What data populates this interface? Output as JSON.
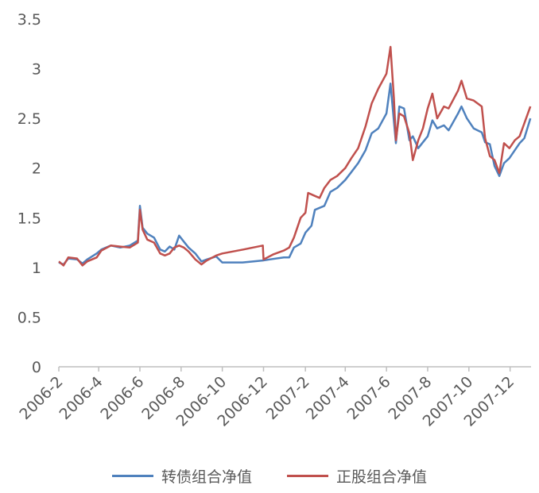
{
  "colors": {
    "series1": "#4F81BD",
    "series2": "#C0504D",
    "axis": "#bfbfbf",
    "text": "#595959"
  },
  "chart_data": {
    "type": "line",
    "title": "",
    "xlabel": "",
    "ylabel": "",
    "ylim": [
      0,
      3.5
    ],
    "yticks": [
      "0",
      "0.5",
      "1",
      "1.5",
      "2",
      "2.5",
      "3",
      "3.5"
    ],
    "xticks": [
      "2006-2",
      "2006-4",
      "2006-6",
      "2006-8",
      "2006-10",
      "2006-12",
      "2007-2",
      "2007-4",
      "2007-6",
      "2007-8",
      "2007-10",
      "2007-12"
    ],
    "xlim": [
      "2006-02",
      "2008-01"
    ],
    "grid": false,
    "legend": "bottom",
    "series": [
      {
        "name": "转债组合净值",
        "points": [
          [
            "2006-02-01",
            1.05
          ],
          [
            "2006-02-08",
            1.03
          ],
          [
            "2006-02-15",
            1.09
          ],
          [
            "2006-02-28",
            1.08
          ],
          [
            "2006-03-08",
            1.04
          ],
          [
            "2006-03-15",
            1.08
          ],
          [
            "2006-03-29",
            1.14
          ],
          [
            "2006-04-05",
            1.18
          ],
          [
            "2006-04-19",
            1.22
          ],
          [
            "2006-05-03",
            1.2
          ],
          [
            "2006-05-17",
            1.22
          ],
          [
            "2006-05-29",
            1.27
          ],
          [
            "2006-06-01",
            1.62
          ],
          [
            "2006-06-05",
            1.4
          ],
          [
            "2006-06-12",
            1.34
          ],
          [
            "2006-06-22",
            1.3
          ],
          [
            "2006-07-01",
            1.18
          ],
          [
            "2006-07-08",
            1.16
          ],
          [
            "2006-07-15",
            1.21
          ],
          [
            "2006-07-22",
            1.18
          ],
          [
            "2006-07-29",
            1.32
          ],
          [
            "2006-08-05",
            1.26
          ],
          [
            "2006-08-12",
            1.2
          ],
          [
            "2006-08-22",
            1.14
          ],
          [
            "2006-08-31",
            1.06
          ],
          [
            "2006-09-08",
            1.08
          ],
          [
            "2006-09-22",
            1.11
          ],
          [
            "2006-10-01",
            1.05
          ],
          [
            "2006-10-31",
            1.05
          ],
          [
            "2006-11-30",
            1.07
          ],
          [
            "2006-12-10",
            1.08
          ],
          [
            "2006-12-31",
            1.1
          ],
          [
            "2007-01-08",
            1.1
          ],
          [
            "2007-01-15",
            1.2
          ],
          [
            "2007-01-25",
            1.24
          ],
          [
            "2007-02-01",
            1.35
          ],
          [
            "2007-02-10",
            1.42
          ],
          [
            "2007-02-15",
            1.58
          ],
          [
            "2007-02-22",
            1.6
          ],
          [
            "2007-03-01",
            1.62
          ],
          [
            "2007-03-10",
            1.76
          ],
          [
            "2007-03-20",
            1.8
          ],
          [
            "2007-04-01",
            1.88
          ],
          [
            "2007-04-10",
            1.96
          ],
          [
            "2007-04-20",
            2.05
          ],
          [
            "2007-05-01",
            2.18
          ],
          [
            "2007-05-10",
            2.35
          ],
          [
            "2007-05-20",
            2.4
          ],
          [
            "2007-06-01",
            2.55
          ],
          [
            "2007-06-07",
            2.85
          ],
          [
            "2007-06-12",
            2.47
          ],
          [
            "2007-06-15",
            2.25
          ],
          [
            "2007-06-20",
            2.62
          ],
          [
            "2007-06-27",
            2.6
          ],
          [
            "2007-07-05",
            2.28
          ],
          [
            "2007-07-10",
            2.32
          ],
          [
            "2007-07-18",
            2.2
          ],
          [
            "2007-07-25",
            2.26
          ],
          [
            "2007-08-01",
            2.32
          ],
          [
            "2007-08-08",
            2.48
          ],
          [
            "2007-08-15",
            2.4
          ],
          [
            "2007-08-25",
            2.43
          ],
          [
            "2007-09-01",
            2.38
          ],
          [
            "2007-09-15",
            2.55
          ],
          [
            "2007-09-20",
            2.62
          ],
          [
            "2007-09-28",
            2.5
          ],
          [
            "2007-10-08",
            2.4
          ],
          [
            "2007-10-20",
            2.36
          ],
          [
            "2007-10-25",
            2.26
          ],
          [
            "2007-11-01",
            2.24
          ],
          [
            "2007-11-08",
            2.02
          ],
          [
            "2007-11-15",
            1.92
          ],
          [
            "2007-11-22",
            2.05
          ],
          [
            "2007-11-30",
            2.1
          ],
          [
            "2007-12-08",
            2.18
          ],
          [
            "2007-12-15",
            2.25
          ],
          [
            "2007-12-22",
            2.3
          ],
          [
            "2007-12-31",
            2.5
          ]
        ]
      },
      {
        "name": "正股组合净值",
        "points": [
          [
            "2006-02-01",
            1.06
          ],
          [
            "2006-02-08",
            1.02
          ],
          [
            "2006-02-15",
            1.1
          ],
          [
            "2006-02-28",
            1.09
          ],
          [
            "2006-03-08",
            1.02
          ],
          [
            "2006-03-15",
            1.06
          ],
          [
            "2006-03-29",
            1.1
          ],
          [
            "2006-04-05",
            1.17
          ],
          [
            "2006-04-19",
            1.22
          ],
          [
            "2006-05-03",
            1.21
          ],
          [
            "2006-05-17",
            1.2
          ],
          [
            "2006-05-29",
            1.25
          ],
          [
            "2006-06-01",
            1.58
          ],
          [
            "2006-06-05",
            1.38
          ],
          [
            "2006-06-12",
            1.28
          ],
          [
            "2006-06-22",
            1.25
          ],
          [
            "2006-07-01",
            1.14
          ],
          [
            "2006-07-08",
            1.12
          ],
          [
            "2006-07-15",
            1.14
          ],
          [
            "2006-07-22",
            1.2
          ],
          [
            "2006-07-29",
            1.22
          ],
          [
            "2006-08-05",
            1.2
          ],
          [
            "2006-08-12",
            1.16
          ],
          [
            "2006-08-22",
            1.08
          ],
          [
            "2006-08-31",
            1.03
          ],
          [
            "2006-09-08",
            1.07
          ],
          [
            "2006-09-22",
            1.12
          ],
          [
            "2006-10-01",
            1.14
          ],
          [
            "2006-11-01",
            1.18
          ],
          [
            "2006-11-30",
            1.22
          ],
          [
            "2006-12-01",
            1.08
          ],
          [
            "2006-12-15",
            1.13
          ],
          [
            "2006-12-31",
            1.17
          ],
          [
            "2007-01-08",
            1.2
          ],
          [
            "2007-01-15",
            1.3
          ],
          [
            "2007-01-25",
            1.5
          ],
          [
            "2007-02-01",
            1.55
          ],
          [
            "2007-02-05",
            1.75
          ],
          [
            "2007-02-15",
            1.72
          ],
          [
            "2007-02-22",
            1.7
          ],
          [
            "2007-03-01",
            1.8
          ],
          [
            "2007-03-10",
            1.88
          ],
          [
            "2007-03-20",
            1.92
          ],
          [
            "2007-04-01",
            2.0
          ],
          [
            "2007-04-10",
            2.1
          ],
          [
            "2007-04-20",
            2.2
          ],
          [
            "2007-05-01",
            2.42
          ],
          [
            "2007-05-10",
            2.65
          ],
          [
            "2007-05-20",
            2.8
          ],
          [
            "2007-06-01",
            2.95
          ],
          [
            "2007-06-07",
            3.22
          ],
          [
            "2007-06-12",
            2.7
          ],
          [
            "2007-06-15",
            2.28
          ],
          [
            "2007-06-20",
            2.55
          ],
          [
            "2007-06-27",
            2.52
          ],
          [
            "2007-07-05",
            2.35
          ],
          [
            "2007-07-10",
            2.08
          ],
          [
            "2007-07-18",
            2.28
          ],
          [
            "2007-07-25",
            2.4
          ],
          [
            "2007-08-01",
            2.6
          ],
          [
            "2007-08-08",
            2.75
          ],
          [
            "2007-08-15",
            2.5
          ],
          [
            "2007-08-25",
            2.62
          ],
          [
            "2007-09-01",
            2.6
          ],
          [
            "2007-09-15",
            2.78
          ],
          [
            "2007-09-20",
            2.88
          ],
          [
            "2007-09-28",
            2.7
          ],
          [
            "2007-10-08",
            2.68
          ],
          [
            "2007-10-20",
            2.62
          ],
          [
            "2007-10-25",
            2.3
          ],
          [
            "2007-11-01",
            2.12
          ],
          [
            "2007-11-08",
            2.08
          ],
          [
            "2007-11-15",
            1.95
          ],
          [
            "2007-11-22",
            2.25
          ],
          [
            "2007-11-30",
            2.2
          ],
          [
            "2007-12-08",
            2.28
          ],
          [
            "2007-12-15",
            2.32
          ],
          [
            "2007-12-22",
            2.45
          ],
          [
            "2007-12-31",
            2.62
          ]
        ]
      }
    ]
  }
}
